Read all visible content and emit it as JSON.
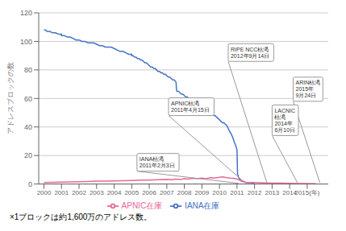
{
  "chart_data": {
    "type": "line",
    "ylabel": "アドレスブロックの数",
    "footnote": "×1ブロックは約1,600万のアドレス数。",
    "xlim": [
      1999.7,
      2016.2
    ],
    "ylim": [
      0,
      120
    ],
    "yticks": [
      0,
      20,
      40,
      60,
      80,
      100,
      120
    ],
    "xticks": [
      2000,
      2001,
      2002,
      2003,
      2004,
      2005,
      2006,
      2007,
      2008,
      2009,
      2010,
      2011,
      2012,
      2013,
      2014,
      {
        "value": 2015,
        "label": "2015(年)"
      }
    ],
    "grid": true,
    "legend": "bottom",
    "series": [
      {
        "name": "IANA在庫",
        "color": "#4472C4",
        "x": [
          2000.0,
          2000.08,
          2000.17,
          2000.33,
          2000.5,
          2000.67,
          2000.83,
          2001.0,
          2001.0,
          2001.17,
          2001.33,
          2001.5,
          2001.67,
          2001.83,
          2002.0,
          2002.0,
          2002.17,
          2002.33,
          2002.5,
          2002.67,
          2002.83,
          2003.0,
          2003.0,
          2003.17,
          2003.33,
          2003.5,
          2003.67,
          2003.83,
          2004.0,
          2004.0,
          2004.17,
          2004.33,
          2004.5,
          2004.67,
          2004.83,
          2005.0,
          2005.0,
          2005.08,
          2005.17,
          2005.25,
          2005.33,
          2005.42,
          2005.5,
          2005.58,
          2005.67,
          2005.75,
          2005.83,
          2005.92,
          2006.0,
          2006.0,
          2006.08,
          2006.17,
          2006.25,
          2006.33,
          2006.42,
          2006.5,
          2006.58,
          2006.67,
          2006.75,
          2006.83,
          2006.92,
          2007.0,
          2007.0,
          2007.08,
          2007.17,
          2007.25,
          2007.33,
          2007.42,
          2007.5,
          2007.53,
          2007.55,
          2007.58,
          2007.67,
          2007.75,
          2007.83,
          2007.92,
          2008.0,
          2008.0,
          2008.08,
          2008.17,
          2008.25,
          2008.33,
          2008.42,
          2008.5,
          2008.58,
          2008.67,
          2008.75,
          2008.83,
          2008.92,
          2009.0,
          2009.0,
          2009.08,
          2009.17,
          2009.25,
          2009.33,
          2009.42,
          2009.5,
          2009.58,
          2009.67,
          2009.75,
          2009.83,
          2009.92,
          2010.0,
          2010.0,
          2010.08,
          2010.17,
          2010.25,
          2010.33,
          2010.42,
          2010.5,
          2010.58,
          2010.67,
          2010.75,
          2010.83,
          2010.92,
          2011.0,
          2011.03,
          2011.08,
          2011.12,
          2011.17,
          2011.25,
          2011.33,
          2011.5,
          2011.67,
          2011.83,
          2012.0
        ],
        "values": [
          108,
          108,
          107,
          107,
          106,
          106,
          105,
          105,
          104,
          104,
          103,
          103,
          102,
          101,
          101,
          101,
          100,
          100,
          99,
          99,
          99,
          98,
          98,
          97,
          97,
          96,
          96,
          96,
          95,
          95,
          94,
          93,
          93,
          92,
          91,
          91,
          90,
          90,
          89,
          89,
          88,
          88,
          87,
          87,
          86,
          85,
          85,
          84,
          83,
          83,
          82,
          82,
          81,
          81,
          80,
          79,
          79,
          78,
          78,
          77,
          77,
          76,
          76,
          75,
          75,
          74,
          73,
          73,
          72,
          71,
          66,
          65,
          65,
          64,
          63,
          63,
          62,
          62,
          61,
          61,
          60,
          59,
          59,
          58,
          57,
          57,
          56,
          55,
          55,
          54,
          54,
          53,
          52,
          52,
          51,
          50,
          50,
          49,
          48,
          48,
          47,
          46,
          45,
          45,
          44,
          43,
          43,
          42,
          41,
          39,
          37,
          35,
          33,
          30,
          27,
          24,
          7,
          5,
          4,
          3,
          2,
          2,
          1,
          1,
          1,
          0
        ]
      },
      {
        "name": "APNIC在庫",
        "color": "#E9669A",
        "x": [
          2000.0,
          2000.5,
          2001.0,
          2001.5,
          2002.0,
          2002.5,
          2003.0,
          2003.5,
          2004.0,
          2004.5,
          2005.0,
          2005.5,
          2006.0,
          2006.5,
          2007.0,
          2007.3,
          2007.5,
          2007.8,
          2008.0,
          2008.2,
          2008.5,
          2008.7,
          2009.0,
          2009.2,
          2009.5,
          2009.7,
          2010.0,
          2010.2,
          2010.4,
          2010.6,
          2010.8,
          2011.0,
          2011.1,
          2011.2,
          2011.3,
          2011.4,
          2011.5,
          2011.7,
          2011.9,
          2012.0,
          2012.5,
          2013.0,
          2013.5,
          2014.0,
          2014.5,
          2015.0,
          2015.5
        ],
        "values": [
          1.0,
          1.2,
          1.3,
          1.5,
          1.7,
          1.8,
          2.0,
          2.0,
          2.2,
          2.3,
          2.5,
          2.8,
          2.7,
          3.0,
          3.2,
          3.0,
          3.5,
          3.2,
          3.8,
          3.5,
          4.0,
          3.8,
          4.2,
          3.8,
          4.5,
          4.2,
          4.8,
          5.0,
          4.5,
          4.2,
          4.0,
          3.5,
          3.0,
          2.5,
          2.0,
          1.5,
          1.2,
          1.0,
          1.0,
          1.0,
          0.8,
          0.7,
          0.6,
          0.5,
          0.4,
          0.3,
          0.2
        ]
      }
    ],
    "annotations": [
      {
        "text": "IANA枯渇\n2011年2月3日",
        "x": 2011.09,
        "y": 0.5,
        "text_x": 2005.3,
        "text_y": 9
      },
      {
        "text": "APNIC枯渇\n2011年4月15日",
        "x": 2011.3,
        "y": 2.5,
        "text_x": 2007.1,
        "text_y": 48
      },
      {
        "text": "RIPE NCC枯渇\n2012年9月14日",
        "x": 2012.7,
        "y": 1.0,
        "text_x": 2010.5,
        "text_y": 86
      },
      {
        "text": "LACNIC\n枯渇\n2014年\n6月10日",
        "x": 2014.44,
        "y": 1.0,
        "text_x": 2013.0,
        "text_y": 34
      },
      {
        "text": "ARIN枯渇\n2015年\n9月24日",
        "x": 2015.72,
        "y": 1.0,
        "text_x": 2014.2,
        "text_y": 58
      }
    ]
  }
}
